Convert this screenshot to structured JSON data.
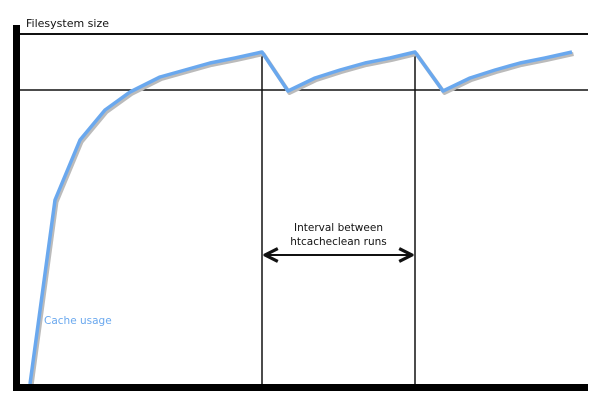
{
  "diagram": {
    "y_axis_label": "Filesystem size",
    "interval_label_line1": "Interval between",
    "interval_label_line2": "htcacheclean runs",
    "series_label": "Cache usage",
    "colors": {
      "curve": "#6aa8ee",
      "curve_shadow": "#bbbbbb",
      "lines": "#111111"
    }
  }
}
